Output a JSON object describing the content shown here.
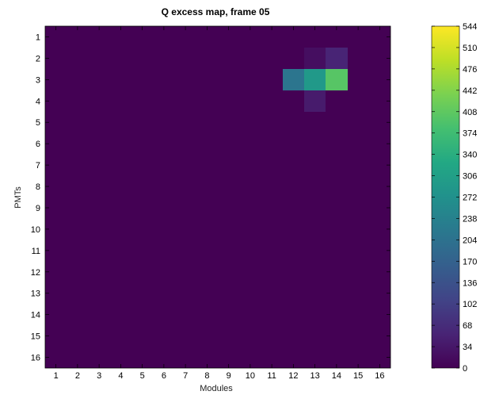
{
  "chart_data": {
    "type": "heatmap",
    "title": "Q excess map, frame 05",
    "xlabel": "Modules",
    "ylabel": "PMTs",
    "x_categories": [
      "1",
      "2",
      "3",
      "4",
      "5",
      "6",
      "7",
      "8",
      "9",
      "10",
      "11",
      "12",
      "13",
      "14",
      "15",
      "16"
    ],
    "y_categories": [
      "1",
      "2",
      "3",
      "4",
      "5",
      "6",
      "7",
      "8",
      "9",
      "10",
      "11",
      "12",
      "13",
      "14",
      "15",
      "16"
    ],
    "cells": [
      {
        "module": 13,
        "pmt": 2,
        "value": 20
      },
      {
        "module": 14,
        "pmt": 2,
        "value": 55
      },
      {
        "module": 12,
        "pmt": 3,
        "value": 210
      },
      {
        "module": 13,
        "pmt": 3,
        "value": 290
      },
      {
        "module": 14,
        "pmt": 3,
        "value": 400
      },
      {
        "module": 13,
        "pmt": 4,
        "value": 40
      }
    ],
    "default_value": 0,
    "colorbar": {
      "min": 0,
      "max": 544,
      "ticks": [
        "0",
        "34",
        "68",
        "102",
        "136",
        "170",
        "204",
        "238",
        "272",
        "306",
        "340",
        "374",
        "408",
        "442",
        "476",
        "510",
        "544"
      ],
      "colormap": "viridis"
    }
  }
}
